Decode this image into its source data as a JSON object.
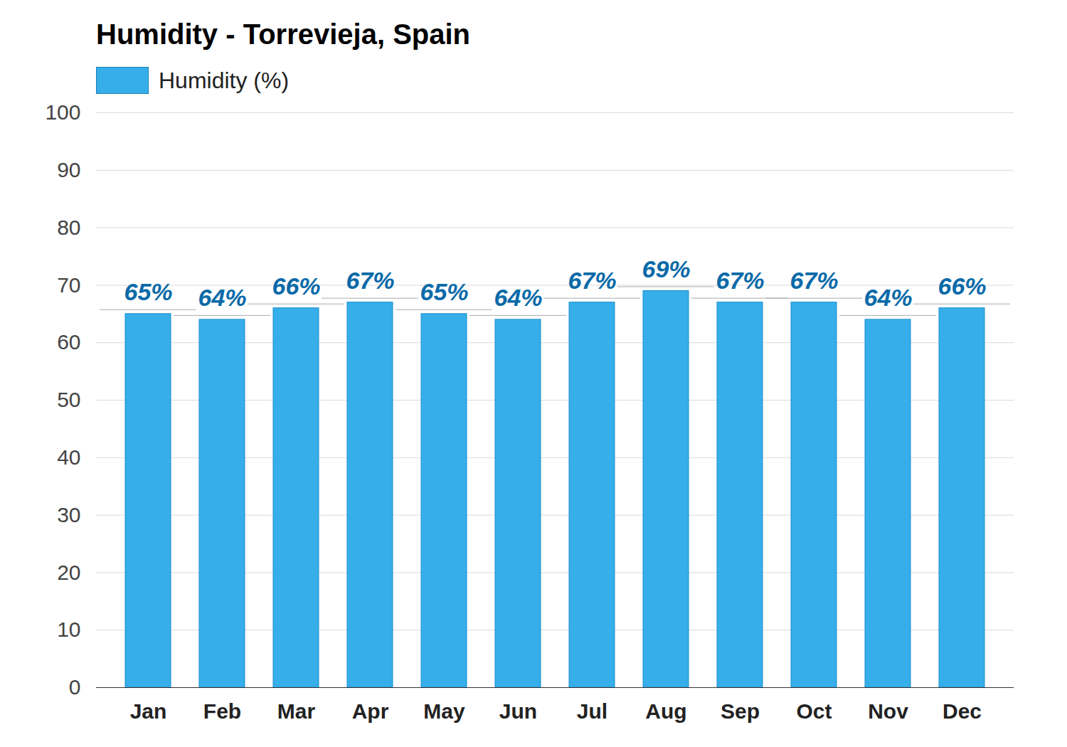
{
  "chart_data": {
    "type": "bar",
    "title": "Humidity - Torrevieja, Spain",
    "categories": [
      "Jan",
      "Feb",
      "Mar",
      "Apr",
      "May",
      "Jun",
      "Jul",
      "Aug",
      "Sep",
      "Oct",
      "Nov",
      "Dec"
    ],
    "series": [
      {
        "name": "Humidity (%)",
        "color": "#36aeea",
        "values": [
          65,
          64,
          66,
          67,
          65,
          64,
          67,
          69,
          67,
          67,
          64,
          66
        ],
        "value_labels": [
          "65%",
          "64%",
          "66%",
          "67%",
          "65%",
          "64%",
          "67%",
          "69%",
          "67%",
          "67%",
          "64%",
          "66%"
        ]
      }
    ],
    "ylim": [
      0,
      100
    ],
    "yticks": [
      0,
      10,
      20,
      30,
      40,
      50,
      60,
      70,
      80,
      90,
      100
    ],
    "grid": true,
    "legend": "top-left",
    "data_labels": true
  }
}
